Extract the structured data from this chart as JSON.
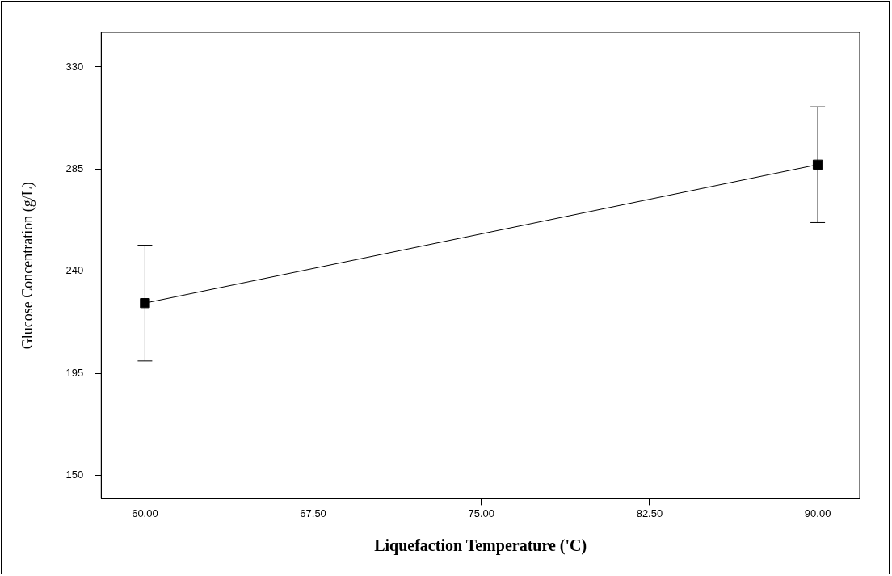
{
  "chart_data": {
    "type": "line",
    "xlabel": "Liquefaction Temperature ('C)",
    "ylabel": "Glucose Concentration (g/L)",
    "x": [
      60,
      90
    ],
    "series": [
      {
        "color": "#000000",
        "values": [
          226,
          287
        ],
        "errors": [
          25.5,
          25.5
        ]
      }
    ],
    "xlim": [
      58.05,
      91.87
    ],
    "xticks": [
      {
        "value": 60,
        "label": "60.00"
      },
      {
        "value": 67.5,
        "label": "67.50"
      },
      {
        "value": 75,
        "label": "75.00"
      },
      {
        "value": 82.5,
        "label": "82.50"
      },
      {
        "value": 90,
        "label": "90.00"
      }
    ],
    "ylim": [
      139.8,
      345.3
    ],
    "yticks": [
      150,
      195,
      240,
      285,
      330
    ],
    "grid": false,
    "legend": false,
    "marker": "square",
    "line_style": "solid"
  }
}
